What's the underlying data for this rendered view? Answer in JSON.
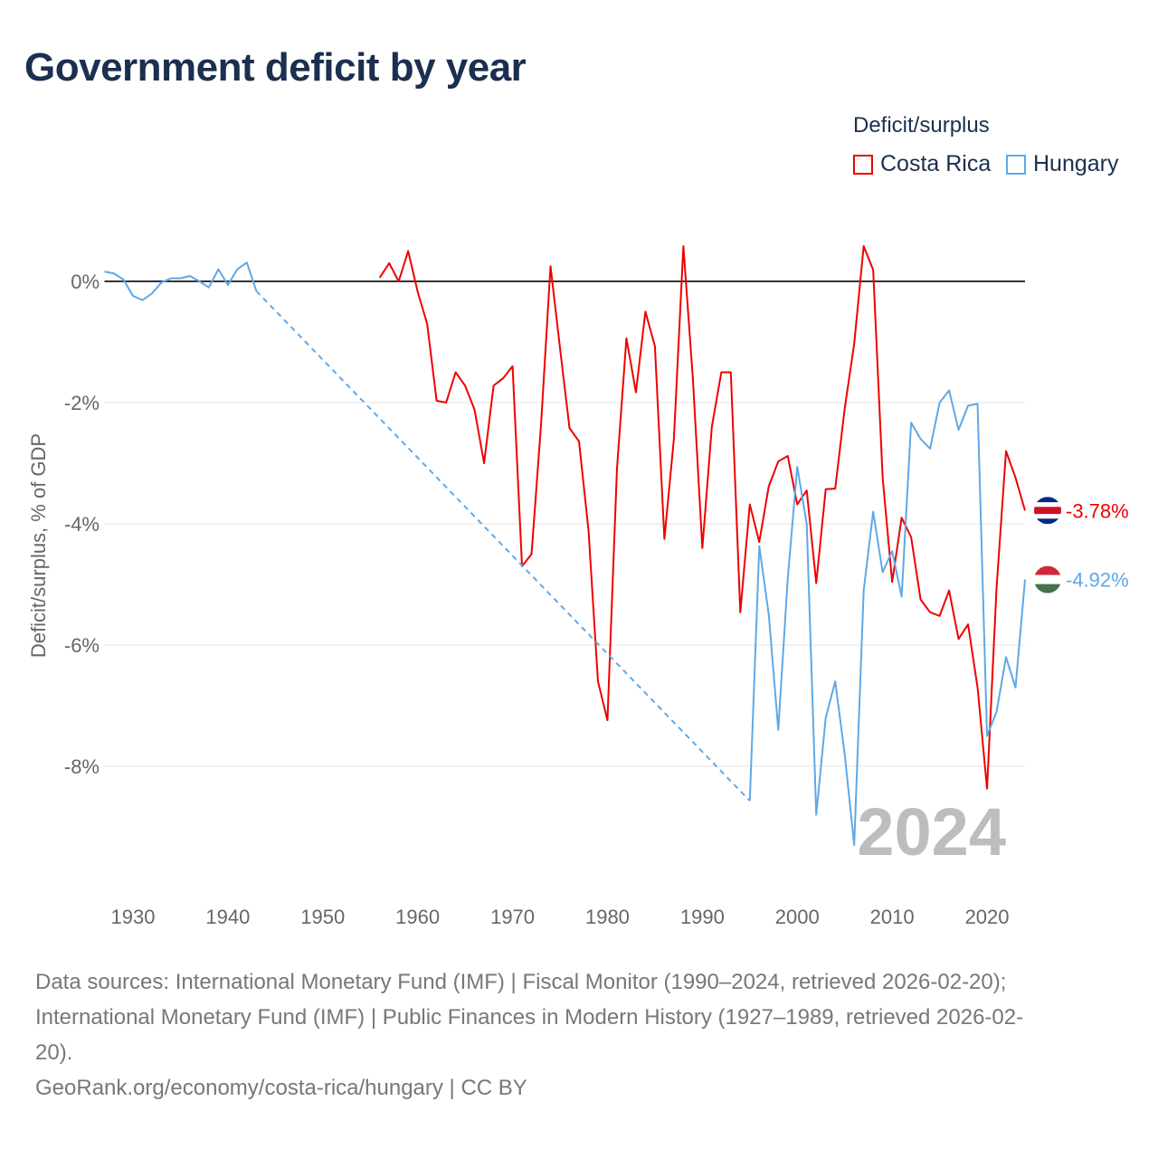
{
  "title": "Government deficit by year",
  "chart_data": {
    "type": "line",
    "title": "Government deficit by year",
    "xlabel": "",
    "ylabel": "Deficit/surplus, % of GDP",
    "legend_title": "Deficit/surplus",
    "legend_position": "top-right",
    "xlim": [
      1927,
      2024
    ],
    "ylim": [
      -9.9,
      0.9
    ],
    "x_ticks": [
      1930,
      1940,
      1950,
      1960,
      1970,
      1980,
      1990,
      2000,
      2010,
      2020
    ],
    "x_tick_labels": [
      "1930",
      "1940",
      "1950",
      "1960",
      "1970",
      "1980",
      "1990",
      "2000",
      "2010",
      "2020"
    ],
    "y_ticks": [
      0,
      -2,
      -4,
      -6,
      -8
    ],
    "y_tick_labels": [
      "0%",
      "-2%",
      "-4%",
      "-6%",
      "-8%"
    ],
    "year_watermark": "2024",
    "series": [
      {
        "name": "Costa Rica",
        "color": "#ee0000",
        "start_year": 1956,
        "end_label": "-3.78%",
        "values": [
          0.06,
          0.3,
          0,
          0.5,
          -0.17,
          -0.7,
          -1.97,
          -2.0,
          -1.5,
          -1.72,
          -2.12,
          -3.0,
          -1.72,
          -1.6,
          -1.4,
          -4.7,
          -4.5,
          -2.37,
          0.25,
          -1.1,
          -2.42,
          -2.64,
          -4.1,
          -6.6,
          -7.24,
          -3.1,
          -0.94,
          -1.83,
          -0.5,
          -1.07,
          -4.25,
          -2.6,
          0.58,
          -1.6,
          -4.4,
          -2.4,
          -1.5,
          -1.5,
          -5.46,
          -3.68,
          -4.3,
          -3.38,
          -2.97,
          -2.88,
          -3.68,
          -3.45,
          -4.98,
          -3.43,
          -3.42,
          -2.1,
          -1.03,
          0.58,
          0.19,
          -3.24,
          -4.96,
          -3.9,
          -4.22,
          -5.25,
          -5.46,
          -5.52,
          -5.1,
          -5.9,
          -5.66,
          -6.7,
          -8.37,
          -5.06,
          -2.8,
          -3.24,
          -3.78
        ]
      },
      {
        "name": "Hungary",
        "color": "#5fa8e8",
        "start_year": 1927,
        "end_label": "-4.92%",
        "values": [
          0.16,
          0.13,
          0.03,
          -0.24,
          -0.31,
          -0.2,
          -0.02,
          0.05,
          0.05,
          0.09,
          0,
          -0.1,
          0.2,
          -0.06,
          0.2,
          0.31,
          -0.16,
          null,
          null,
          null,
          null,
          null,
          null,
          null,
          null,
          null,
          null,
          null,
          null,
          null,
          null,
          null,
          null,
          null,
          null,
          null,
          null,
          null,
          null,
          null,
          null,
          null,
          null,
          null,
          null,
          null,
          null,
          null,
          null,
          null,
          null,
          null,
          null,
          null,
          null,
          null,
          null,
          null,
          null,
          null,
          null,
          null,
          null,
          null,
          null,
          null,
          null,
          null,
          -8.57,
          -4.37,
          -5.5,
          -7.4,
          -4.9,
          -3.06,
          -4.0,
          -8.8,
          -7.2,
          -6.6,
          -7.8,
          -9.3,
          -5.1,
          -3.8,
          -4.8,
          -4.45,
          -5.2,
          -2.33,
          -2.6,
          -2.76,
          -2.0,
          -1.8,
          -2.45,
          -2.05,
          -2.02,
          -7.5,
          -7.1,
          -6.2,
          -6.7,
          -4.92
        ]
      }
    ]
  },
  "sources": {
    "line1": "Data sources: International Monetary Fund (IMF) | Fiscal Monitor (1990–2024, retrieved 2026-02-20);",
    "line2": "International Monetary Fund (IMF) | Public Finances in Modern History (1927–1989, retrieved 2026-02-",
    "line3": "20).",
    "line4": "GeoRank.org/economy/costa-rica/hungary | CC BY"
  }
}
